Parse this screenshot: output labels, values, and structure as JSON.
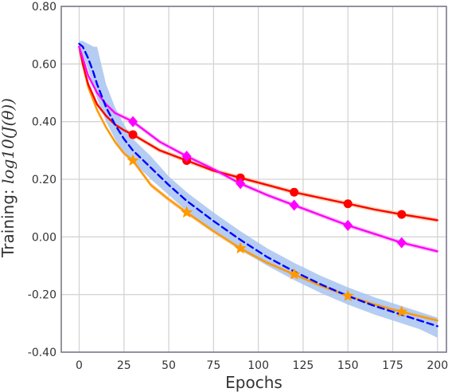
{
  "chart_data": {
    "type": "line",
    "xlabel": "Epochs",
    "ylabel": "Training: ",
    "ylabel_math": "log10(J(θ))",
    "xlim": [
      -10,
      205
    ],
    "ylim": [
      -0.4,
      0.8
    ],
    "xticks": [
      0,
      25,
      50,
      75,
      100,
      125,
      150,
      175,
      200
    ],
    "xtick_labels": [
      "0",
      "25",
      "50",
      "75",
      "100",
      "125",
      "150",
      "175",
      "200"
    ],
    "yticks": [
      -0.4,
      -0.2,
      0.0,
      0.2,
      0.4,
      0.6,
      0.8
    ],
    "ytick_labels": [
      "-0.40",
      "-0.20",
      "0.00",
      "0.20",
      "0.40",
      "0.60",
      "0.80"
    ],
    "grid": true,
    "legend": "none",
    "series": [
      {
        "color": "#ff9900",
        "band_color": "#f6c9a0",
        "marker": "star",
        "line_style": "solid",
        "x": [
          0,
          2,
          5,
          10,
          15,
          20,
          25,
          30,
          40,
          50,
          60,
          75,
          90,
          105,
          120,
          135,
          150,
          165,
          180,
          190,
          200
        ],
        "y": [
          0.66,
          0.6,
          0.52,
          0.44,
          0.38,
          0.33,
          0.29,
          0.265,
          0.18,
          0.13,
          0.085,
          0.02,
          -0.04,
          -0.09,
          -0.13,
          -0.17,
          -0.205,
          -0.235,
          -0.26,
          -0.275,
          -0.29
        ],
        "markers_x": [
          30,
          60,
          90,
          120,
          150,
          180
        ],
        "markers_y": [
          0.265,
          0.085,
          -0.04,
          -0.13,
          -0.205,
          -0.26
        ]
      },
      {
        "color": "#ff0000",
        "band_color": "#f6c9a0",
        "marker": "circle",
        "line_style": "solid",
        "x": [
          0,
          2,
          5,
          10,
          15,
          20,
          25,
          30,
          45,
          60,
          75,
          90,
          105,
          120,
          135,
          150,
          165,
          180,
          190,
          200
        ],
        "y": [
          0.66,
          0.6,
          0.53,
          0.46,
          0.42,
          0.39,
          0.37,
          0.355,
          0.3,
          0.265,
          0.23,
          0.205,
          0.18,
          0.155,
          0.135,
          0.115,
          0.095,
          0.078,
          0.068,
          0.058
        ],
        "markers_x": [
          30,
          60,
          90,
          120,
          150,
          180
        ],
        "markers_y": [
          0.355,
          0.265,
          0.205,
          0.155,
          0.115,
          0.078
        ]
      },
      {
        "color": "#ff00ff",
        "band_color": "#f8b8e8",
        "marker": "diamond",
        "line_style": "solid",
        "x": [
          0,
          2,
          5,
          10,
          15,
          20,
          25,
          30,
          45,
          60,
          75,
          90,
          105,
          120,
          135,
          150,
          165,
          180,
          190,
          200
        ],
        "y": [
          0.66,
          0.62,
          0.56,
          0.5,
          0.46,
          0.43,
          0.415,
          0.4,
          0.33,
          0.28,
          0.235,
          0.185,
          0.145,
          0.11,
          0.075,
          0.04,
          0.01,
          -0.02,
          -0.035,
          -0.05
        ],
        "markers_x": [
          30,
          60,
          90,
          120,
          150,
          180
        ],
        "markers_y": [
          0.4,
          0.28,
          0.185,
          0.11,
          0.04,
          -0.02
        ]
      },
      {
        "color": "#0000ff",
        "band_color": "#a8c4f0",
        "marker": "none",
        "line_style": "dashed",
        "x": [
          0,
          2,
          5,
          8,
          10,
          15,
          20,
          25,
          30,
          40,
          50,
          60,
          75,
          90,
          105,
          120,
          135,
          150,
          165,
          180,
          190,
          200
        ],
        "y": [
          0.67,
          0.66,
          0.62,
          0.57,
          0.53,
          0.45,
          0.39,
          0.34,
          0.3,
          0.24,
          0.18,
          0.125,
          0.055,
          -0.01,
          -0.07,
          -0.12,
          -0.165,
          -0.205,
          -0.24,
          -0.27,
          -0.29,
          -0.31
        ],
        "band_upper": [
          0.68,
          0.68,
          0.67,
          0.66,
          0.66,
          0.53,
          0.45,
          0.39,
          0.34,
          0.28,
          0.21,
          0.155,
          0.085,
          0.02,
          -0.04,
          -0.09,
          -0.135,
          -0.175,
          -0.21,
          -0.24,
          -0.26,
          -0.28
        ],
        "band_lower": [
          0.64,
          0.63,
          0.58,
          0.52,
          0.48,
          0.4,
          0.34,
          0.29,
          0.26,
          0.2,
          0.145,
          0.09,
          0.02,
          -0.045,
          -0.1,
          -0.15,
          -0.195,
          -0.235,
          -0.27,
          -0.3,
          -0.32,
          -0.35
        ]
      }
    ]
  }
}
